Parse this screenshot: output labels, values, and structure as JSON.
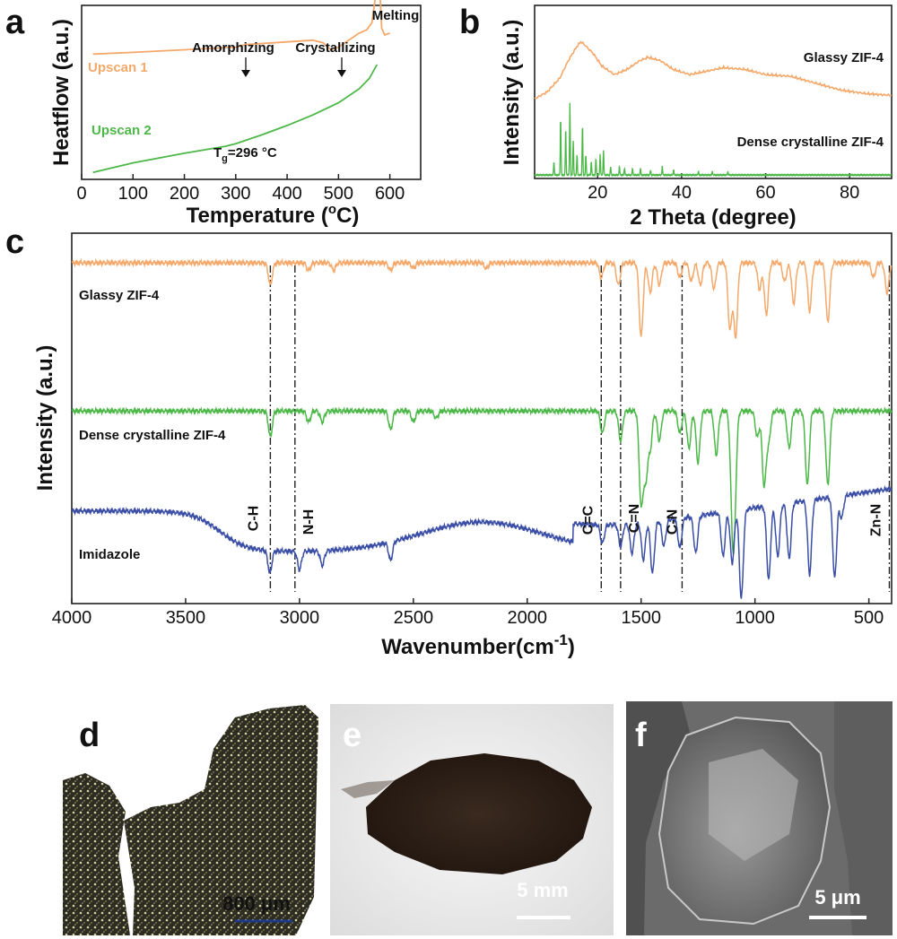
{
  "colors": {
    "orange": "#f4a86a",
    "green": "#4cb848",
    "blue": "#3b4ea6",
    "axis": "#222222"
  },
  "chart_data": [
    {
      "id": "a",
      "type": "line",
      "panel_letter": "a",
      "xlabel": "Temperature (",
      "xlabel_unit_sup": "o",
      "xlabel_unit": "C)",
      "ylabel": "Heatflow (a.u.)",
      "xlim": [
        0,
        660
      ],
      "xticks": [
        0,
        100,
        200,
        300,
        400,
        500,
        600
      ],
      "series": [
        {
          "name": "Upscan 1",
          "color": "orange",
          "x": [
            22,
            100,
            200,
            300,
            320,
            400,
            450,
            470,
            485,
            500,
            520,
            540,
            555,
            565,
            572,
            577,
            580,
            584,
            590,
            600
          ],
          "y": [
            0.72,
            0.73,
            0.745,
            0.76,
            0.775,
            0.79,
            0.8,
            0.785,
            0.745,
            0.76,
            0.8,
            0.84,
            0.86,
            0.9,
            1.05,
            1.28,
            1.12,
            0.87,
            0.83,
            0.84
          ]
        },
        {
          "name": "Upscan 2",
          "color": "green",
          "x": [
            22,
            100,
            200,
            280,
            300,
            350,
            400,
            450,
            500,
            540,
            560,
            575
          ],
          "y": [
            0.04,
            0.095,
            0.15,
            0.19,
            0.205,
            0.255,
            0.31,
            0.37,
            0.44,
            0.52,
            0.58,
            0.66
          ]
        }
      ],
      "annotations": [
        "Amorphizing",
        "Crystallizing",
        "Melting"
      ],
      "tg_label_prefix": "T",
      "tg_label_sub": "g",
      "tg_label_value": "=296 °C"
    },
    {
      "id": "b",
      "type": "line",
      "panel_letter": "b",
      "xlabel": "2 Theta (degree)",
      "ylabel": "Intensity (a.u.)",
      "xlim": [
        5,
        90
      ],
      "xticks": [
        20,
        40,
        60,
        80
      ],
      "series": [
        {
          "name": "Glassy ZIF-4",
          "color": "orange",
          "x": [
            5,
            8,
            11,
            13,
            15,
            16,
            17,
            19,
            21,
            24,
            27,
            30,
            32,
            35,
            38,
            42,
            46,
            50,
            55,
            60,
            66,
            72,
            78,
            84,
            90
          ],
          "y": [
            0.46,
            0.5,
            0.58,
            0.68,
            0.76,
            0.79,
            0.77,
            0.72,
            0.65,
            0.6,
            0.63,
            0.68,
            0.7,
            0.68,
            0.63,
            0.6,
            0.62,
            0.64,
            0.63,
            0.6,
            0.59,
            0.55,
            0.51,
            0.49,
            0.48
          ]
        },
        {
          "name": "Dense crystalline ZIF-4",
          "color": "green",
          "peaks": [
            [
              9.6,
              0.08
            ],
            [
              11.2,
              0.34
            ],
            [
              12.4,
              0.28
            ],
            [
              13.4,
              0.42
            ],
            [
              14.2,
              0.2
            ],
            [
              15.1,
              0.12
            ],
            [
              16.4,
              0.3
            ],
            [
              17.2,
              0.12
            ],
            [
              18.5,
              0.08
            ],
            [
              19.6,
              0.1
            ],
            [
              20.6,
              0.12
            ],
            [
              21.4,
              0.14
            ],
            [
              23.1,
              0.05
            ],
            [
              25.2,
              0.05
            ],
            [
              26.4,
              0.04
            ],
            [
              28.3,
              0.04
            ],
            [
              30.2,
              0.04
            ],
            [
              32.6,
              0.03
            ],
            [
              35.4,
              0.05
            ],
            [
              38.1,
              0.03
            ],
            [
              44.0,
              0.02
            ],
            [
              47.3,
              0.02
            ],
            [
              51.0,
              0.02
            ]
          ],
          "baseline": 0.02
        }
      ]
    },
    {
      "id": "c",
      "type": "line",
      "panel_letter": "c",
      "xlabel": "Wavenumber(cm",
      "xlabel_unit_sup": "-1",
      "xlabel_unit": ")",
      "ylabel": "Intensity (a.u.)",
      "xlim": [
        4000,
        400
      ],
      "xticks": [
        4000,
        3500,
        3000,
        2500,
        2000,
        1500,
        1000,
        500
      ],
      "series": [
        {
          "name": "Glassy ZIF-4",
          "color": "orange",
          "offset": 0.92,
          "peaks": [
            [
              3128,
              0.06
            ],
            [
              2960,
              0.02
            ],
            [
              2850,
              0.02
            ],
            [
              2600,
              0.02
            ],
            [
              2500,
              0.015
            ],
            [
              2180,
              0.015
            ],
            [
              1675,
              0.04
            ],
            [
              1600,
              0.06
            ],
            [
              1500,
              0.2
            ],
            [
              1460,
              0.08
            ],
            [
              1420,
              0.06
            ],
            [
              1330,
              0.04
            ],
            [
              1280,
              0.05
            ],
            [
              1240,
              0.06
            ],
            [
              1180,
              0.07
            ],
            [
              1110,
              0.18
            ],
            [
              1085,
              0.2
            ],
            [
              980,
              0.07
            ],
            [
              950,
              0.14
            ],
            [
              870,
              0.05
            ],
            [
              830,
              0.11
            ],
            [
              760,
              0.13
            ],
            [
              680,
              0.16
            ],
            [
              480,
              0.04
            ],
            [
              420,
              0.08
            ]
          ]
        },
        {
          "name": "Dense crystalline ZIF-4",
          "color": "green",
          "offset": 0.52,
          "peaks": [
            [
              3128,
              0.07
            ],
            [
              2960,
              0.03
            ],
            [
              2900,
              0.03
            ],
            [
              2600,
              0.05
            ],
            [
              2500,
              0.03
            ],
            [
              2400,
              0.02
            ],
            [
              1670,
              0.06
            ],
            [
              1590,
              0.08
            ],
            [
              1500,
              0.25
            ],
            [
              1480,
              0.18
            ],
            [
              1460,
              0.1
            ],
            [
              1420,
              0.08
            ],
            [
              1330,
              0.06
            ],
            [
              1290,
              0.1
            ],
            [
              1250,
              0.14
            ],
            [
              1170,
              0.12
            ],
            [
              1100,
              0.22
            ],
            [
              1090,
              0.24
            ],
            [
              990,
              0.07
            ],
            [
              960,
              0.2
            ],
            [
              940,
              0.08
            ],
            [
              850,
              0.1
            ],
            [
              770,
              0.2
            ],
            [
              680,
              0.2
            ]
          ]
        },
        {
          "name": "Imidazole",
          "color": "blue",
          "offset": 0.14,
          "peaks": [
            [
              3130,
              0.06
            ],
            [
              3000,
              0.05
            ],
            [
              2900,
              0.04
            ],
            [
              2600,
              0.05
            ],
            [
              1670,
              0.05
            ],
            [
              1590,
              0.06
            ],
            [
              1540,
              0.08
            ],
            [
              1490,
              0.1
            ],
            [
              1450,
              0.14
            ],
            [
              1400,
              0.07
            ],
            [
              1330,
              0.08
            ],
            [
              1260,
              0.1
            ],
            [
              1140,
              0.12
            ],
            [
              1100,
              0.14
            ],
            [
              1060,
              0.24
            ],
            [
              940,
              0.2
            ],
            [
              900,
              0.14
            ],
            [
              850,
              0.15
            ],
            [
              760,
              0.2
            ],
            [
              650,
              0.22
            ],
            [
              620,
              0.06
            ]
          ]
        }
      ],
      "reference_lines": [
        3128,
        3020,
        1675,
        1590,
        1320,
        410
      ],
      "bond_labels": [
        "C-H",
        "N-H",
        "C=C",
        "C=N",
        "C-N",
        "Zn-N"
      ]
    }
  ],
  "images": {
    "d": {
      "panel_letter": "d",
      "scale_label": "800 μm"
    },
    "e": {
      "panel_letter": "e",
      "scale_label": "5 mm"
    },
    "f": {
      "panel_letter": "f",
      "scale_label": "5 μm"
    }
  }
}
